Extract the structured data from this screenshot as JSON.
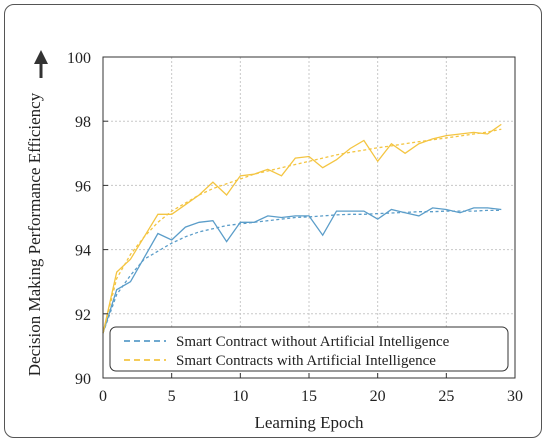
{
  "chart_data": {
    "type": "line",
    "title": "",
    "xlabel": "Learning Epoch",
    "ylabel": "Decision Making Performance Efficiency",
    "xlim": [
      0,
      30
    ],
    "ylim": [
      90,
      100
    ],
    "xticks": [
      0,
      5,
      10,
      15,
      20,
      25,
      30
    ],
    "yticks": [
      90,
      92,
      94,
      96,
      98,
      100
    ],
    "grid": true,
    "legend_position": "bottom-left",
    "series": [
      {
        "name": "Smart Contract without Artificial Intelligence",
        "color": "#5b9dc9",
        "x": [
          0,
          1,
          2,
          3,
          4,
          5,
          6,
          7,
          8,
          9,
          10,
          11,
          12,
          13,
          14,
          15,
          16,
          17,
          18,
          19,
          20,
          21,
          22,
          23,
          24,
          25,
          26,
          27,
          28,
          29
        ],
        "values": [
          91.4,
          92.75,
          93.0,
          93.75,
          94.5,
          94.3,
          94.7,
          94.85,
          94.9,
          94.25,
          94.85,
          94.85,
          95.05,
          95.0,
          95.05,
          95.05,
          94.45,
          95.2,
          95.2,
          95.2,
          94.95,
          95.25,
          95.15,
          95.05,
          95.3,
          95.25,
          95.15,
          95.3,
          95.3,
          95.25
        ],
        "trend": [
          91.4,
          92.6,
          93.2,
          93.7,
          93.95,
          94.2,
          94.4,
          94.55,
          94.65,
          94.75,
          94.8,
          94.85,
          94.9,
          94.95,
          95.0,
          95.02,
          95.05,
          95.08,
          95.1,
          95.1,
          95.12,
          95.14,
          95.16,
          95.18,
          95.18,
          95.2,
          95.2,
          95.2,
          95.22,
          95.22
        ]
      },
      {
        "name": "Smart Contracts with Artificial Intelligence",
        "color": "#f4c542",
        "x": [
          0,
          1,
          2,
          3,
          4,
          5,
          6,
          7,
          8,
          9,
          10,
          11,
          12,
          13,
          14,
          15,
          16,
          17,
          18,
          19,
          20,
          21,
          22,
          23,
          24,
          25,
          26,
          27,
          28,
          29
        ],
        "values": [
          91.4,
          93.3,
          93.7,
          94.4,
          95.1,
          95.1,
          95.4,
          95.7,
          96.1,
          95.7,
          96.3,
          96.35,
          96.5,
          96.3,
          96.85,
          96.9,
          96.55,
          96.8,
          97.15,
          97.4,
          96.75,
          97.3,
          97.0,
          97.3,
          97.45,
          97.55,
          97.6,
          97.65,
          97.6,
          97.9
        ],
        "trend": [
          91.4,
          93.1,
          93.85,
          94.4,
          94.85,
          95.2,
          95.45,
          95.7,
          95.9,
          96.05,
          96.2,
          96.35,
          96.45,
          96.55,
          96.65,
          96.75,
          96.85,
          96.95,
          97.03,
          97.1,
          97.17,
          97.23,
          97.3,
          97.36,
          97.42,
          97.48,
          97.54,
          97.6,
          97.66,
          97.75
        ]
      }
    ]
  },
  "y_arrow_icon": "up-arrow-icon"
}
